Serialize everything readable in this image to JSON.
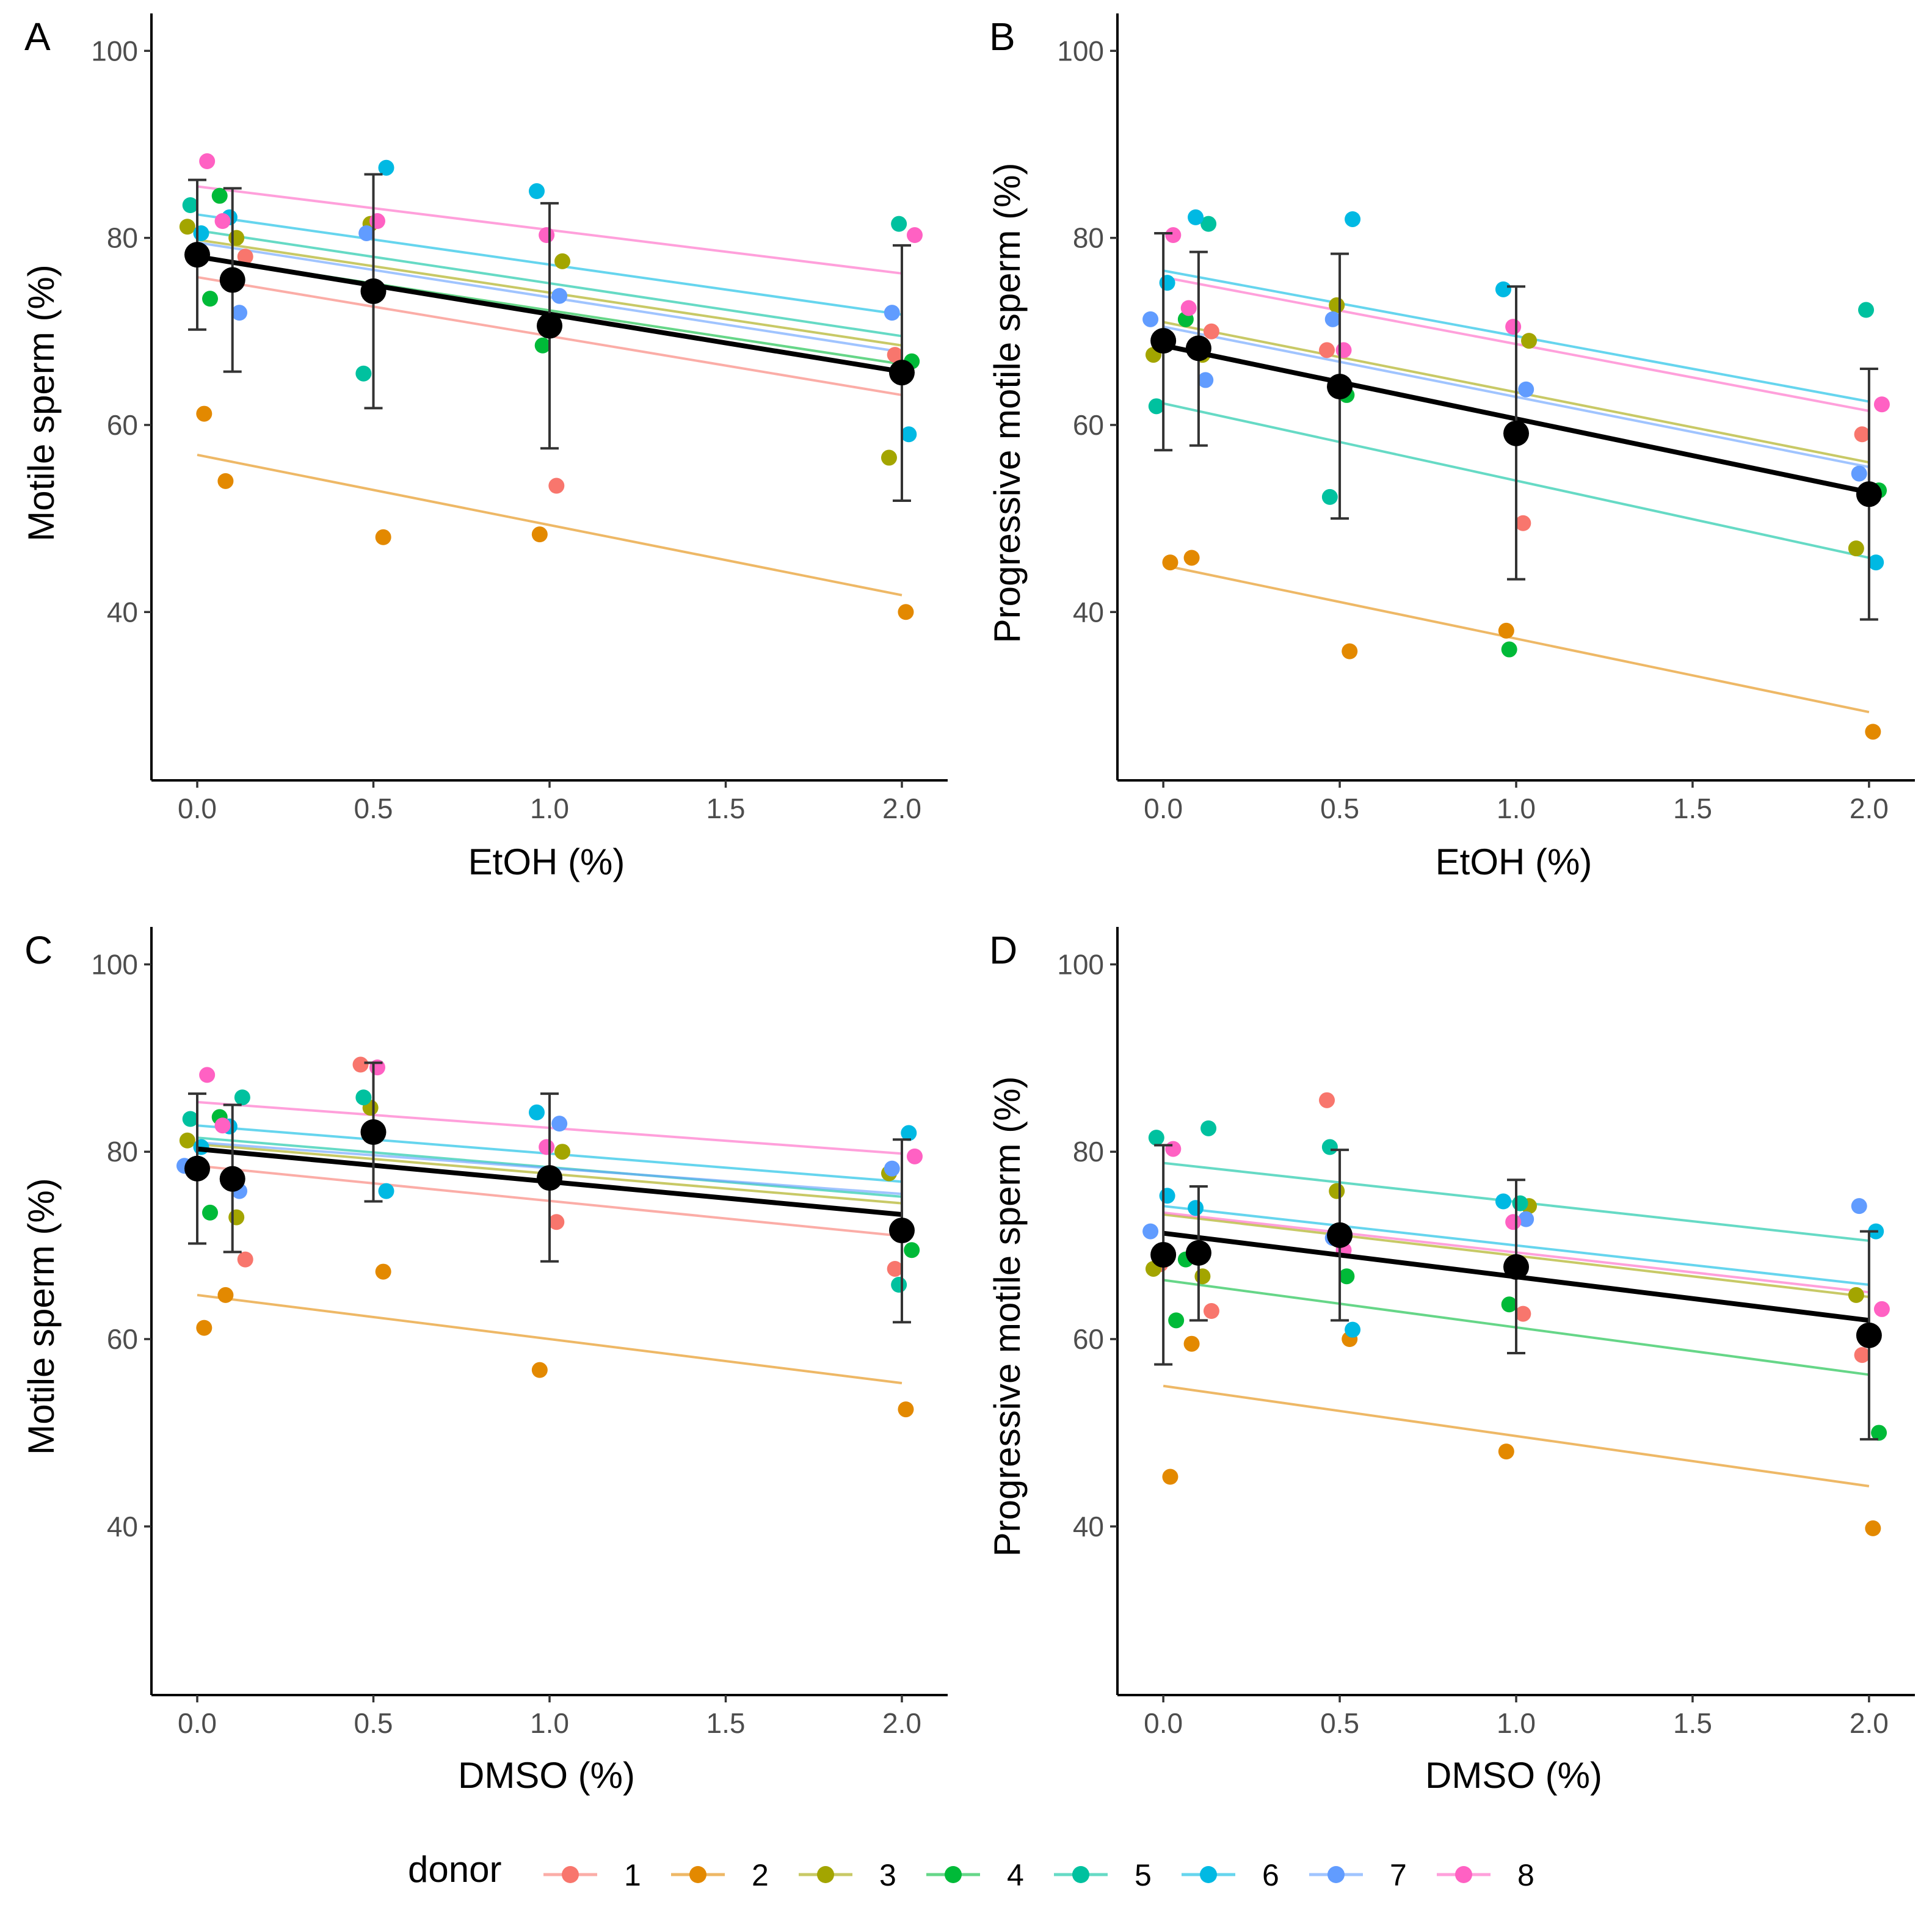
{
  "legend": {
    "title": "donor",
    "entries": [
      {
        "label": "1",
        "color": "#F8766D"
      },
      {
        "label": "2",
        "color": "#E38900"
      },
      {
        "label": "3",
        "color": "#A3A500"
      },
      {
        "label": "4",
        "color": "#00BA38"
      },
      {
        "label": "5",
        "color": "#00C19F"
      },
      {
        "label": "6",
        "color": "#00B9E3"
      },
      {
        "label": "7",
        "color": "#619CFF"
      },
      {
        "label": "8",
        "color": "#FF61C3"
      }
    ]
  },
  "chart_data": [
    {
      "panel": "A",
      "type": "scatter",
      "xlabel": "EtOH (%)",
      "ylabel": "Motile sperm (%)",
      "xlim": [
        -0.13,
        2.13
      ],
      "ylim": [
        22,
        104
      ],
      "xticks": [
        "0.0",
        "0.5",
        "1.0",
        "1.5",
        "2.0"
      ],
      "yticks": [
        "40",
        "60",
        "80",
        "100"
      ],
      "x": [
        0,
        0.1,
        0.5,
        1.0,
        2.0
      ],
      "series": [
        {
          "name": "1",
          "values": [
            78.5,
            78.0,
            null,
            53.5,
            67.5
          ],
          "fit": [
            75.8,
            63.2
          ]
        },
        {
          "name": "2",
          "values": [
            61.2,
            54.0,
            48.0,
            48.3,
            40.0
          ],
          "fit": [
            56.8,
            41.8
          ]
        },
        {
          "name": "3",
          "values": [
            81.2,
            80.0,
            81.5,
            77.5,
            56.5
          ],
          "fit": [
            79.8,
            68.5
          ]
        },
        {
          "name": "4",
          "values": [
            73.5,
            84.5,
            null,
            68.5,
            66.8
          ],
          "fit": [
            78.0,
            66.5
          ]
        },
        {
          "name": "5",
          "values": [
            83.5,
            null,
            65.5,
            null,
            81.5
          ],
          "fit": [
            80.8,
            69.5
          ]
        },
        {
          "name": "6",
          "values": [
            80.5,
            82.2,
            87.5,
            85.0,
            59.0
          ],
          "fit": [
            82.5,
            71.8
          ]
        },
        {
          "name": "7",
          "values": [
            null,
            72.0,
            80.5,
            73.8,
            72.0
          ],
          "fit": [
            79.5,
            67.8
          ]
        },
        {
          "name": "8",
          "values": [
            88.2,
            81.8,
            81.8,
            80.3,
            80.3
          ],
          "fit": [
            85.5,
            76.2
          ]
        }
      ],
      "mean": {
        "values": [
          78.2,
          75.5,
          74.3,
          70.6,
          65.6
        ],
        "upper": [
          86.2,
          85.3,
          86.8,
          83.7,
          79.2
        ],
        "lower": [
          70.2,
          65.7,
          61.8,
          57.5,
          51.9
        ],
        "fit": [
          78.0,
          65.7
        ]
      }
    },
    {
      "panel": "B",
      "type": "scatter",
      "xlabel": "EtOH (%)",
      "ylabel": "Progressive motile sperm (%)",
      "xlim": [
        -0.13,
        2.13
      ],
      "ylim": [
        22,
        104
      ],
      "xticks": [
        "0.0",
        "0.5",
        "1.0",
        "1.5",
        "2.0"
      ],
      "yticks": [
        "40",
        "60",
        "80",
        "100"
      ],
      "x": [
        0,
        0.1,
        0.5,
        1.0,
        2.0
      ],
      "series": [
        {
          "name": "1",
          "values": [
            null,
            70.0,
            68.0,
            49.5,
            59.0
          ],
          "fit": [
            null,
            null
          ]
        },
        {
          "name": "2",
          "values": [
            45.3,
            45.8,
            35.8,
            38.0,
            27.2
          ],
          "fit": [
            45.0,
            29.3
          ]
        },
        {
          "name": "3",
          "values": [
            67.5,
            67.5,
            72.8,
            69.0,
            46.8
          ],
          "fit": [
            71.0,
            56.0
          ]
        },
        {
          "name": "4",
          "values": [
            null,
            71.3,
            63.2,
            36.0,
            53.0
          ],
          "fit": [
            null,
            null
          ]
        },
        {
          "name": "5",
          "values": [
            62.0,
            81.5,
            52.3,
            null,
            72.3
          ],
          "fit": [
            62.3,
            45.8
          ]
        },
        {
          "name": "6",
          "values": [
            75.2,
            82.2,
            82.0,
            74.5,
            45.3
          ],
          "fit": [
            76.5,
            62.5
          ]
        },
        {
          "name": "7",
          "values": [
            71.3,
            64.8,
            71.3,
            63.8,
            54.8
          ],
          "fit": [
            70.5,
            55.5
          ]
        },
        {
          "name": "8",
          "values": [
            80.3,
            72.5,
            68.0,
            70.5,
            62.2
          ],
          "fit": [
            75.8,
            61.5
          ]
        }
      ],
      "mean": {
        "values": [
          69.0,
          68.2,
          64.1,
          59.1,
          52.6
        ],
        "upper": [
          80.5,
          78.5,
          78.3,
          74.8,
          66.0
        ],
        "lower": [
          57.3,
          57.8,
          50.0,
          43.5,
          39.2
        ],
        "fit": [
          68.5,
          52.8
        ]
      }
    },
    {
      "panel": "C",
      "type": "scatter",
      "xlabel": "DMSO (%)",
      "ylabel": "Motile sperm (%)",
      "xlim": [
        -0.13,
        2.13
      ],
      "ylim": [
        22,
        104
      ],
      "xticks": [
        "0.0",
        "0.5",
        "1.0",
        "1.5",
        "2.0"
      ],
      "yticks": [
        "40",
        "60",
        "80",
        "100"
      ],
      "x": [
        0,
        0.1,
        0.5,
        1.0,
        2.0
      ],
      "series": [
        {
          "name": "1",
          "values": [
            78.5,
            68.5,
            89.3,
            72.5,
            67.5
          ],
          "fit": [
            78.5,
            71.0
          ]
        },
        {
          "name": "2",
          "values": [
            61.2,
            64.7,
            67.2,
            56.7,
            52.5
          ],
          "fit": [
            64.7,
            55.3
          ]
        },
        {
          "name": "3",
          "values": [
            81.2,
            73.0,
            84.7,
            80.0,
            77.7
          ],
          "fit": [
            80.8,
            74.5
          ]
        },
        {
          "name": "4",
          "values": [
            73.5,
            83.7,
            null,
            null,
            69.5
          ],
          "fit": [
            80.3,
            73.3
          ]
        },
        {
          "name": "5",
          "values": [
            83.5,
            85.8,
            85.8,
            null,
            65.8
          ],
          "fit": [
            81.5,
            75.2
          ]
        },
        {
          "name": "6",
          "values": [
            80.5,
            82.7,
            75.8,
            84.2,
            82.0
          ],
          "fit": [
            82.8,
            76.8
          ]
        },
        {
          "name": "7",
          "values": [
            78.5,
            75.8,
            null,
            83.0,
            78.2
          ],
          "fit": [
            81.0,
            75.5
          ]
        },
        {
          "name": "8",
          "values": [
            88.2,
            82.8,
            89.0,
            80.5,
            79.5
          ],
          "fit": [
            85.3,
            79.8
          ]
        }
      ],
      "mean": {
        "values": [
          78.2,
          77.1,
          82.1,
          77.2,
          71.6
        ],
        "upper": [
          86.2,
          85.0,
          89.5,
          86.2,
          81.3
        ],
        "lower": [
          70.2,
          69.3,
          74.7,
          68.3,
          61.8
        ],
        "fit": [
          80.3,
          73.3
        ]
      }
    },
    {
      "panel": "D",
      "type": "scatter",
      "xlabel": "DMSO (%)",
      "ylabel": "Progressive motile sperm (%)",
      "xlim": [
        -0.13,
        2.13
      ],
      "ylim": [
        22,
        104
      ],
      "xticks": [
        "0.0",
        "0.5",
        "1.0",
        "1.5",
        "2.0"
      ],
      "yticks": [
        "40",
        "60",
        "80",
        "100"
      ],
      "x": [
        0,
        0.1,
        0.5,
        1.0,
        2.0
      ],
      "series": [
        {
          "name": "1",
          "values": [
            68.0,
            63.0,
            85.5,
            62.7,
            58.3
          ],
          "fit": [
            null,
            null
          ]
        },
        {
          "name": "2",
          "values": [
            45.3,
            59.5,
            60.0,
            48.0,
            39.8
          ],
          "fit": [
            55.0,
            44.3
          ]
        },
        {
          "name": "3",
          "values": [
            67.5,
            66.7,
            75.8,
            74.2,
            64.7
          ],
          "fit": [
            73.3,
            64.5
          ]
        },
        {
          "name": "4",
          "values": [
            62.0,
            68.5,
            66.7,
            63.7,
            50.0
          ],
          "fit": [
            66.3,
            56.2
          ]
        },
        {
          "name": "5",
          "values": [
            81.5,
            82.5,
            80.5,
            74.5,
            null
          ],
          "fit": [
            78.8,
            70.5
          ]
        },
        {
          "name": "6",
          "values": [
            75.3,
            74.0,
            61.0,
            74.7,
            71.5
          ],
          "fit": [
            74.2,
            65.8
          ]
        },
        {
          "name": "7",
          "values": [
            71.5,
            null,
            70.8,
            72.8,
            74.2
          ],
          "fit": [
            null,
            null
          ]
        },
        {
          "name": "8",
          "values": [
            80.3,
            null,
            69.5,
            72.5,
            63.2
          ],
          "fit": [
            73.5,
            65.0
          ]
        }
      ],
      "mean": {
        "values": [
          69.0,
          69.2,
          71.1,
          67.7,
          60.4
        ],
        "upper": [
          80.7,
          76.3,
          80.2,
          77.0,
          71.5
        ],
        "lower": [
          57.3,
          62.0,
          62.0,
          58.5,
          49.3
        ],
        "fit": [
          71.3,
          62.0
        ]
      }
    }
  ]
}
